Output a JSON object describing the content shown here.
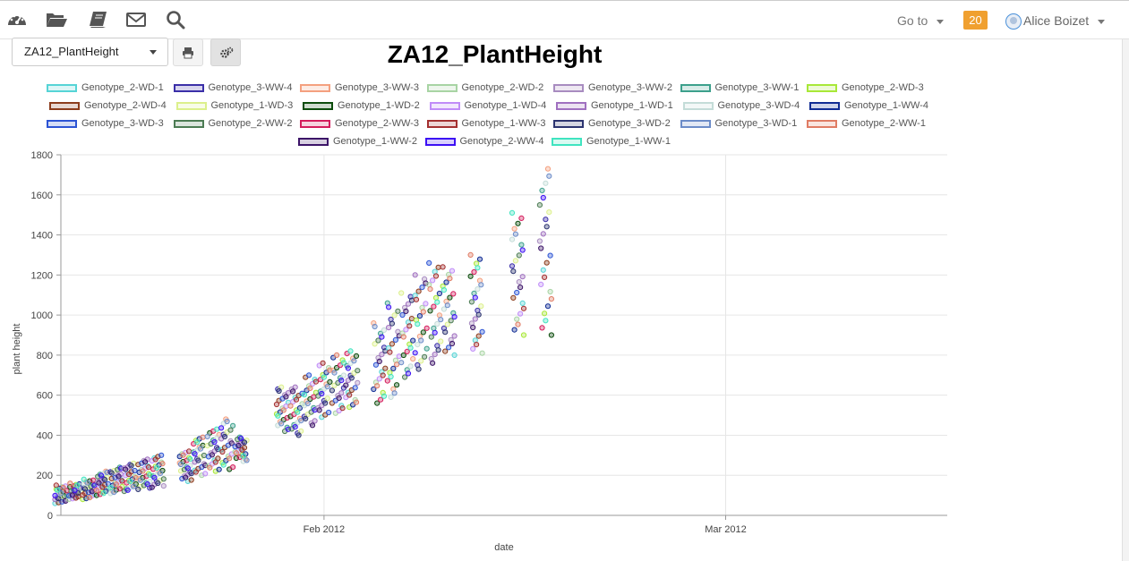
{
  "nav": {
    "icons": [
      "dashboard-icon",
      "folder-icon",
      "book-icon",
      "envelope-icon",
      "search-icon"
    ],
    "goto_label": "Go to",
    "notification_count": "20",
    "user_name": "Alice Boizet"
  },
  "toolbar": {
    "variable_selected": "ZA12_PlantHeight"
  },
  "chart_data": {
    "type": "scatter",
    "title": "ZA12_PlantHeight",
    "xlabel": "date",
    "ylabel": "plant height",
    "ylim": [
      0,
      1800
    ],
    "y_ticks": [
      0,
      200,
      400,
      600,
      800,
      1000,
      1200,
      1400,
      1600,
      1800
    ],
    "xlim": [
      "2012-01-13",
      "2012-03-17"
    ],
    "x_ticks": [
      {
        "date": "2012-02-01",
        "label": "Feb 2012"
      },
      {
        "date": "2012-03-01",
        "label": "Mar 2012"
      }
    ],
    "grid": true,
    "legend_position": "top",
    "series": [
      {
        "name": "Genotype_2-WD-1",
        "color": "#56d4d6"
      },
      {
        "name": "Genotype_3-WW-4",
        "color": "#3b2fa8"
      },
      {
        "name": "Genotype_3-WW-3",
        "color": "#f4a07f"
      },
      {
        "name": "Genotype_2-WD-2",
        "color": "#a8d4a4"
      },
      {
        "name": "Genotype_3-WW-2",
        "color": "#a88cc0"
      },
      {
        "name": "Genotype_3-WW-1",
        "color": "#3ca08c"
      },
      {
        "name": "Genotype_2-WD-3",
        "color": "#a8e838"
      },
      {
        "name": "Genotype_2-WD-4",
        "color": "#8c3c1c"
      },
      {
        "name": "Genotype_1-WD-3",
        "color": "#dcf08c"
      },
      {
        "name": "Genotype_1-WD-2",
        "color": "#0c4c0c"
      },
      {
        "name": "Genotype_1-WD-4",
        "color": "#c08cf8"
      },
      {
        "name": "Genotype_1-WD-1",
        "color": "#a070c0"
      },
      {
        "name": "Genotype_3-WD-4",
        "color": "#c4dcd8"
      },
      {
        "name": "Genotype_1-WW-4",
        "color": "#102c94"
      },
      {
        "name": "Genotype_3-WD-3",
        "color": "#2c54d4"
      },
      {
        "name": "Genotype_2-WW-2",
        "color": "#4c7c54"
      },
      {
        "name": "Genotype_2-WW-3",
        "color": "#d41c5c"
      },
      {
        "name": "Genotype_1-WW-3",
        "color": "#a43030"
      },
      {
        "name": "Genotype_3-WD-2",
        "color": "#2c3470"
      },
      {
        "name": "Genotype_3-WD-1",
        "color": "#6c8cc8"
      },
      {
        "name": "Genotype_2-WW-1",
        "color": "#e07c64"
      },
      {
        "name": "Genotype_1-WW-2",
        "color": "#3c1468"
      },
      {
        "name": "Genotype_2-WW-4",
        "color": "#3c10f4"
      },
      {
        "name": "Genotype_1-WW-1",
        "color": "#40e4c0"
      }
    ],
    "clusters": [
      {
        "date": "2012-01-13",
        "min": 60,
        "max": 150
      },
      {
        "date": "2012-01-14",
        "min": 80,
        "max": 160
      },
      {
        "date": "2012-01-15",
        "min": 80,
        "max": 180
      },
      {
        "date": "2012-01-16",
        "min": 100,
        "max": 220
      },
      {
        "date": "2012-01-17",
        "min": 110,
        "max": 240
      },
      {
        "date": "2012-01-18",
        "min": 120,
        "max": 260
      },
      {
        "date": "2012-01-19",
        "min": 130,
        "max": 280
      },
      {
        "date": "2012-01-20",
        "min": 140,
        "max": 300
      },
      {
        "date": "2012-01-22",
        "min": 170,
        "max": 320
      },
      {
        "date": "2012-01-23",
        "min": 200,
        "max": 390
      },
      {
        "date": "2012-01-24",
        "min": 220,
        "max": 430
      },
      {
        "date": "2012-01-25",
        "min": 230,
        "max": 480
      },
      {
        "date": "2012-01-26",
        "min": 270,
        "max": 390
      },
      {
        "date": "2012-01-29",
        "min": 420,
        "max": 640
      },
      {
        "date": "2012-01-30",
        "min": 400,
        "max": 640
      },
      {
        "date": "2012-01-31",
        "min": 450,
        "max": 700
      },
      {
        "date": "2012-02-01",
        "min": 490,
        "max": 760
      },
      {
        "date": "2012-02-02",
        "min": 510,
        "max": 800
      },
      {
        "date": "2012-02-03",
        "min": 540,
        "max": 820
      },
      {
        "date": "2012-02-05",
        "min": 560,
        "max": 960
      },
      {
        "date": "2012-02-06",
        "min": 590,
        "max": 1060
      },
      {
        "date": "2012-02-07",
        "min": 690,
        "max": 1110
      },
      {
        "date": "2012-02-08",
        "min": 730,
        "max": 1200
      },
      {
        "date": "2012-02-09",
        "min": 760,
        "max": 1260
      },
      {
        "date": "2012-02-10",
        "min": 800,
        "max": 1240
      },
      {
        "date": "2012-02-12",
        "min": 810,
        "max": 1300
      },
      {
        "date": "2012-02-15",
        "min": 900,
        "max": 1510
      },
      {
        "date": "2012-02-17",
        "min": 900,
        "max": 1730
      }
    ]
  }
}
